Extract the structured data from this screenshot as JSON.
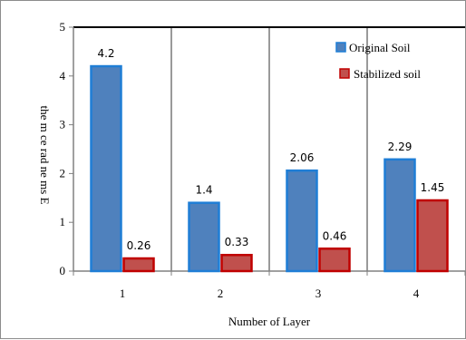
{
  "chart_data": {
    "type": "bar",
    "categories": [
      "1",
      "2",
      "3",
      "4"
    ],
    "series": [
      {
        "name": "Original Soil",
        "values": [
          4.2,
          1.4,
          2.06,
          2.29
        ],
        "value_labels": [
          "4.2",
          "1.4",
          "2.06",
          "2.29"
        ],
        "fill": "#4f81bd",
        "stroke": "#1f7ed6"
      },
      {
        "name": "Stabilized soil",
        "values": [
          0.26,
          0.33,
          0.46,
          1.45
        ],
        "value_labels": [
          "0.26",
          "0.33",
          "0.46",
          "1.45"
        ],
        "fill": "#c0504d",
        "stroke": "#c00000"
      }
    ],
    "xlabel": "Number of Layer",
    "ylabel": "the m ce rad ne ms E",
    "ylim": [
      0,
      5
    ],
    "yticks": [
      "0",
      "1",
      "2",
      "3",
      "4",
      "5"
    ],
    "grid": "vertical",
    "legend": "top-right"
  }
}
